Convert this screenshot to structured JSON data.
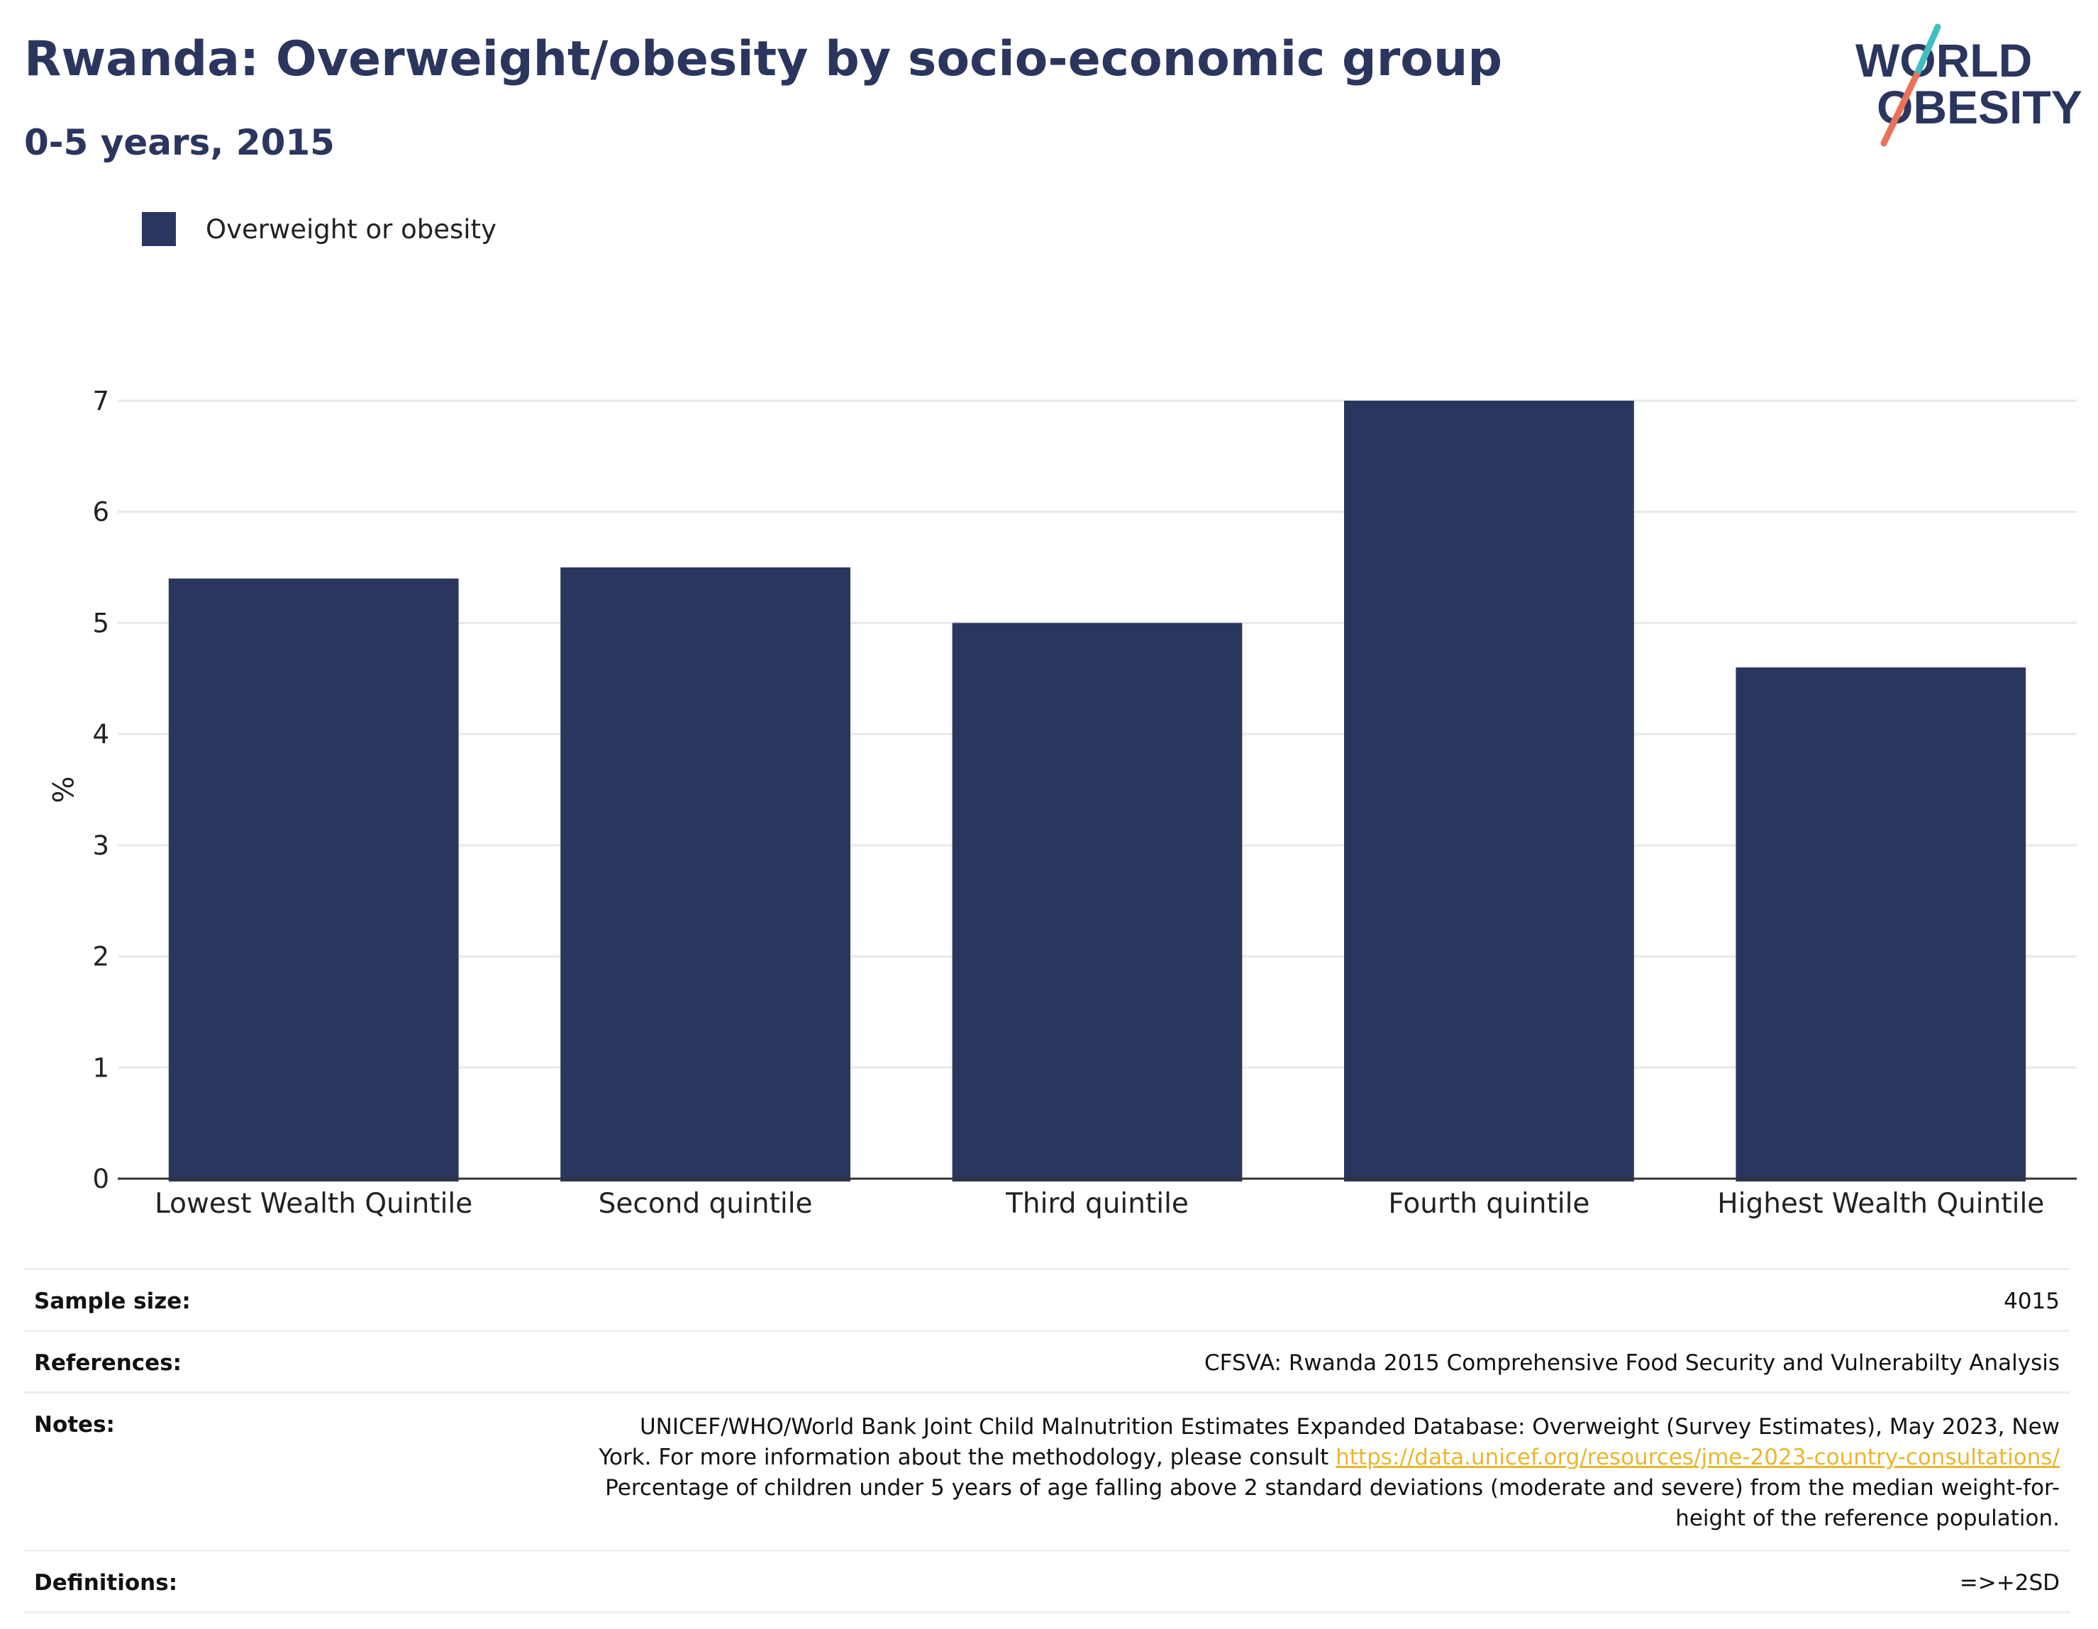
{
  "header": {
    "title": "Rwanda: Overweight/obesity by socio-economic group",
    "subtitle": "0-5 years, 2015"
  },
  "logo": {
    "line1": "WORLD",
    "line2": "OBESITY",
    "colors": {
      "text": "#2b365f",
      "slash_top": "#3fbfbf",
      "slash_bottom": "#e8735a"
    }
  },
  "legend": {
    "label": "Overweight or obesity",
    "color": "#2b365f"
  },
  "chart_data": {
    "type": "bar",
    "categories": [
      "Lowest Wealth Quintile",
      "Second quintile",
      "Third quintile",
      "Fourth quintile",
      "Highest Wealth Quintile"
    ],
    "series": [
      {
        "name": "Overweight or obesity",
        "values": [
          5.4,
          5.5,
          5.0,
          7.0,
          4.6
        ],
        "color": "#2b365f"
      }
    ],
    "xlabel": "",
    "ylabel": "%",
    "ylim": [
      0,
      7
    ],
    "yticks": [
      0,
      1,
      2,
      3,
      4,
      5,
      6,
      7
    ],
    "grid": true,
    "legend_position": "top-left"
  },
  "info": {
    "sample_size": {
      "label": "Sample size:",
      "value": "4015"
    },
    "references": {
      "label": "References:",
      "value": "CFSVA: Rwanda 2015 Comprehensive Food Security and Vulnerabilty Analysis"
    },
    "notes": {
      "label": "Notes:",
      "line1": "UNICEF/WHO/World Bank Joint Child Malnutrition Estimates Expanded Database: Overweight (Survey Estimates), May 2023, New",
      "line2_prefix": "York. For more information about the methodology, please consult ",
      "link": "https://data.unicef.org/resources/jme-2023-country-consultations/",
      "line3": "Percentage of children under 5 years of age falling above 2 standard deviations (moderate and severe) from the median weight-for-",
      "line4": "height of the reference population."
    },
    "definitions": {
      "label": "Definitions:",
      "value": "=>+2SD"
    }
  }
}
